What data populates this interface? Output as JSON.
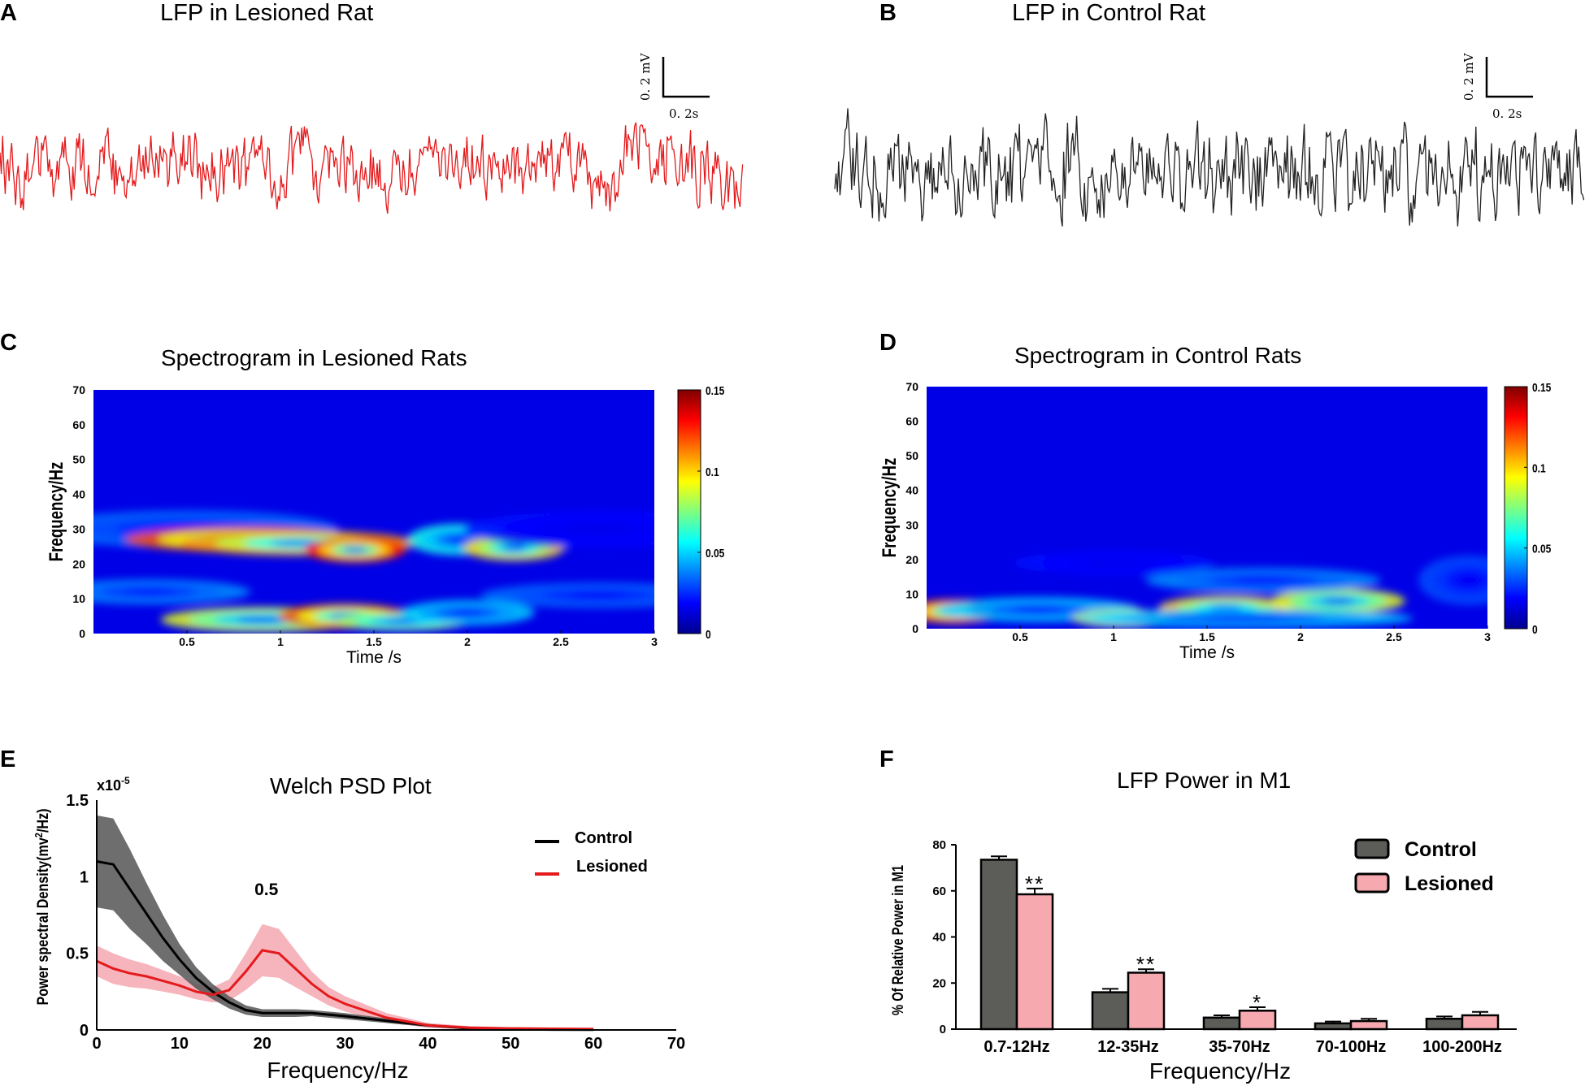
{
  "panels": {
    "a": {
      "letter": "A",
      "title": "LFP  in Lesioned Rat",
      "scalebar": {
        "amp_label": "0. 2 mV",
        "time_label": "0. 2s"
      },
      "trace_color": "#e41a1c"
    },
    "b": {
      "letter": "B",
      "title": "LFP in Control Rat",
      "scalebar": {
        "amp_label": "0. 2 mV",
        "time_label": "0. 2s"
      },
      "trace_color": "#222222"
    },
    "c": {
      "letter": "C",
      "title": "Spectrogram in Lesioned Rats"
    },
    "d": {
      "letter": "D",
      "title": "Spectrogram in Control Rats"
    },
    "e": {
      "letter": "E"
    },
    "f": {
      "letter": "F"
    }
  },
  "chart_data": [
    {
      "id": "spectrogram-lesioned",
      "type": "heatmap",
      "title": "Spectrogram in Lesioned Rats",
      "xlabel": "Time /s",
      "ylabel": "Frequency/Hz",
      "xlim": [
        0,
        3
      ],
      "ylim": [
        0,
        70
      ],
      "xticks": [
        "0.5",
        "1",
        "1.5",
        "2",
        "2.5",
        "3"
      ],
      "yticks": [
        "0",
        "10",
        "20",
        "30",
        "40",
        "50",
        "60",
        "70"
      ],
      "colorbar": {
        "min": 0,
        "max": 0.15,
        "ticks": [
          "0",
          "0.05",
          "0.1",
          "0.15"
        ]
      },
      "hotspots": [
        {
          "t": 0.5,
          "f": 30,
          "power": 0.035,
          "dt": 0.45,
          "df": 3
        },
        {
          "t": 0.8,
          "f": 27,
          "power": 0.12,
          "dt": 0.35,
          "df": 2
        },
        {
          "t": 1.1,
          "f": 26,
          "power": 0.11,
          "dt": 0.35,
          "df": 2
        },
        {
          "t": 1.4,
          "f": 24,
          "power": 0.13,
          "dt": 0.15,
          "df": 2
        },
        {
          "t": 1.95,
          "f": 27,
          "power": 0.06,
          "dt": 0.15,
          "df": 2.5
        },
        {
          "t": 2.25,
          "f": 24.5,
          "power": 0.1,
          "dt": 0.15,
          "df": 2
        },
        {
          "t": 2.7,
          "f": 30,
          "power": 0.02,
          "dt": 0.4,
          "df": 3
        },
        {
          "t": 0.3,
          "f": 12,
          "power": 0.04,
          "dt": 0.3,
          "df": 2
        },
        {
          "t": 2.7,
          "f": 11,
          "power": 0.035,
          "dt": 0.35,
          "df": 2
        },
        {
          "t": 0.9,
          "f": 4,
          "power": 0.09,
          "dt": 0.3,
          "df": 2
        },
        {
          "t": 1.35,
          "f": 5,
          "power": 0.12,
          "dt": 0.2,
          "df": 2
        },
        {
          "t": 1.65,
          "f": 3.5,
          "power": 0.08,
          "dt": 0.2,
          "df": 1.5
        },
        {
          "t": 2.0,
          "f": 6,
          "power": 0.05,
          "dt": 0.2,
          "df": 2
        }
      ]
    },
    {
      "id": "spectrogram-control",
      "type": "heatmap",
      "title": "Spectrogram in Control Rats",
      "xlabel": "Time /s",
      "ylabel": "Frequency/Hz",
      "xlim": [
        0,
        3
      ],
      "ylim": [
        0,
        70
      ],
      "xticks": [
        "0.5",
        "1",
        "1.5",
        "2",
        "2.5",
        "3"
      ],
      "yticks": [
        "0",
        "10",
        "20",
        "30",
        "40",
        "50",
        "60",
        "70"
      ],
      "colorbar": {
        "min": 0,
        "max": 0.15,
        "ticks": [
          "0",
          "0.05",
          "0.1",
          "0.15"
        ]
      },
      "hotspots": [
        {
          "t": 0.15,
          "f": 5,
          "power": 0.13,
          "dt": 0.15,
          "df": 2
        },
        {
          "t": 0.6,
          "f": 5.5,
          "power": 0.05,
          "dt": 0.3,
          "df": 2
        },
        {
          "t": 1.05,
          "f": 3,
          "power": 0.09,
          "dt": 0.15,
          "df": 1.5
        },
        {
          "t": 1.6,
          "f": 6,
          "power": 0.1,
          "dt": 0.2,
          "df": 2
        },
        {
          "t": 2.2,
          "f": 8,
          "power": 0.09,
          "dt": 0.2,
          "df": 2
        },
        {
          "t": 1.8,
          "f": 14,
          "power": 0.04,
          "dt": 0.35,
          "df": 2
        },
        {
          "t": 1.0,
          "f": 19,
          "power": 0.02,
          "dt": 0.3,
          "df": 2
        },
        {
          "t": 2.9,
          "f": 14,
          "power": 0.03,
          "dt": 0.15,
          "df": 4
        },
        {
          "t": 1.7,
          "f": 3,
          "power": 0.05,
          "dt": 0.5,
          "df": 1.5
        }
      ]
    },
    {
      "id": "welch-psd",
      "type": "line",
      "title": "Welch PSD Plot",
      "xlabel": "Frequency/Hz",
      "ylabel": "Power spectral Density(mv",
      "ylabel_sup": "2",
      "ylabel_tail": "/Hz)",
      "y_multiplier": "x10",
      "y_multiplier_exp": "-5",
      "xlim": [
        0,
        70
      ],
      "ylim": [
        0,
        1.5
      ],
      "xticks": [
        "0",
        "10",
        "20",
        "30",
        "40",
        "50",
        "60",
        "70"
      ],
      "yticks": [
        "0",
        "0.5",
        "1",
        "1.5"
      ],
      "annotation": {
        "text": "0.5",
        "x": 20,
        "y": 0.88
      },
      "x": [
        0,
        2,
        4,
        6,
        8,
        10,
        12,
        14,
        16,
        18,
        20,
        22,
        24,
        26,
        28,
        30,
        35,
        40,
        45,
        50,
        55,
        60
      ],
      "series": [
        {
          "name": "Control",
          "color": "#000000",
          "band_color": "#555555",
          "values": [
            1.1,
            1.08,
            0.92,
            0.76,
            0.6,
            0.46,
            0.34,
            0.25,
            0.18,
            0.13,
            0.11,
            0.11,
            0.11,
            0.11,
            0.1,
            0.09,
            0.06,
            0.03,
            0.01,
            0.005,
            0.002,
            0.001
          ],
          "sem": [
            0.3,
            0.3,
            0.26,
            0.2,
            0.15,
            0.1,
            0.07,
            0.05,
            0.04,
            0.03,
            0.025,
            0.025,
            0.025,
            0.02,
            0.02,
            0.02,
            0.015,
            0.01,
            0.005,
            0.003,
            0.002,
            0.001
          ]
        },
        {
          "name": "Lesioned",
          "color": "#e41a1c",
          "band_color": "#f4a7b0",
          "values": [
            0.45,
            0.4,
            0.37,
            0.35,
            0.32,
            0.29,
            0.25,
            0.23,
            0.26,
            0.38,
            0.52,
            0.5,
            0.4,
            0.3,
            0.22,
            0.17,
            0.08,
            0.03,
            0.015,
            0.01,
            0.008,
            0.006
          ],
          "sem": [
            0.1,
            0.1,
            0.09,
            0.08,
            0.07,
            0.06,
            0.05,
            0.05,
            0.07,
            0.12,
            0.17,
            0.16,
            0.12,
            0.08,
            0.06,
            0.05,
            0.03,
            0.015,
            0.01,
            0.008,
            0.008,
            0.008
          ]
        }
      ]
    },
    {
      "id": "lfp-power-m1",
      "type": "bar",
      "title": "LFP Power in M1",
      "xlabel": "Frequency/Hz",
      "ylabel": "% Of Relative Power in M1",
      "ylim": [
        0,
        80
      ],
      "yticks": [
        "0",
        "20",
        "40",
        "60",
        "80"
      ],
      "categories": [
        "0.7-12Hz",
        "12-35Hz",
        "35-70Hz",
        "70-100Hz",
        "100-200Hz"
      ],
      "series": [
        {
          "name": "Control",
          "color": "#5c5c58",
          "values": [
            73.5,
            16,
            5,
            2.5,
            4.5
          ],
          "errors": [
            1.5,
            1.5,
            1,
            0.8,
            1
          ]
        },
        {
          "name": "Lesioned",
          "color": "#f7a9b0",
          "values": [
            58.5,
            24.5,
            8,
            3.5,
            6
          ],
          "errors": [
            2.5,
            1.5,
            1.5,
            1,
            1.5
          ]
        }
      ],
      "significance": [
        "**",
        "**",
        "*",
        "",
        ""
      ]
    }
  ]
}
